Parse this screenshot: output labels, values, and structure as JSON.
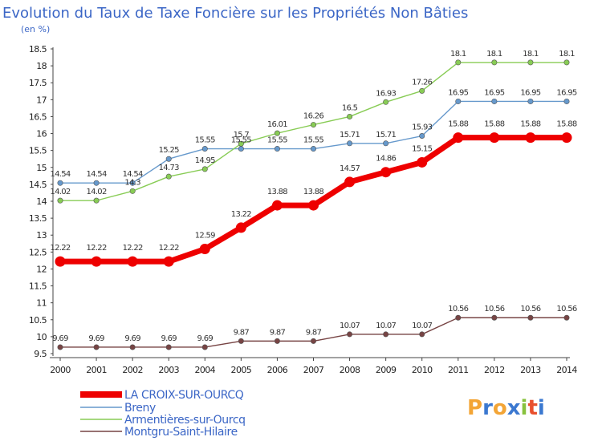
{
  "chart_data": {
    "type": "line",
    "title": "Evolution du Taux de Taxe Foncière sur les Propriétés Non Bâties",
    "subtitle": "(en %)",
    "x": [
      "2000",
      "2001",
      "2002",
      "2003",
      "2004",
      "2005",
      "2006",
      "2007",
      "2008",
      "2009",
      "2010",
      "2011",
      "2012",
      "2013",
      "2014"
    ],
    "ylim": [
      9.5,
      18.5
    ],
    "yticks": [
      "9.5",
      "10",
      "10.5",
      "11",
      "11.5",
      "12",
      "12.5",
      "13",
      "13.5",
      "14",
      "14.5",
      "15",
      "15.5",
      "16",
      "16.5",
      "17",
      "17.5",
      "18",
      "18.5"
    ],
    "grid": false,
    "legend_position": "bottom-left",
    "series": [
      {
        "name": "LA CROIX-SUR-OURCQ",
        "color": "#ee0000",
        "emphasis": true,
        "values": [
          12.22,
          12.22,
          12.22,
          12.22,
          12.59,
          13.22,
          13.88,
          13.88,
          14.57,
          14.86,
          15.15,
          15.88,
          15.88,
          15.88,
          15.88
        ],
        "labels": [
          "12.22",
          "12.22",
          "12.22",
          "12.22",
          "12.59",
          "13.22",
          "13.88",
          "13.88",
          "14.57",
          "14.86",
          "15.15",
          "15.88",
          "15.88",
          "15.88",
          "15.88"
        ]
      },
      {
        "name": "Breny",
        "color": "#6699cc",
        "values": [
          14.54,
          14.54,
          14.54,
          15.25,
          15.55,
          15.55,
          15.55,
          15.55,
          15.71,
          15.71,
          15.93,
          16.95,
          16.95,
          16.95,
          16.95
        ],
        "labels": [
          "14.54",
          "14.54",
          "14.54",
          "15.25",
          "15.55",
          "15.55",
          "15.55",
          "15.55",
          "15.71",
          "15.71",
          "15.93",
          "16.95",
          "16.95",
          "16.95",
          "16.95"
        ]
      },
      {
        "name": "Armentières-sur-Ourcq",
        "color": "#88cc55",
        "values": [
          14.02,
          14.02,
          14.3,
          14.73,
          14.95,
          15.7,
          16.01,
          16.26,
          16.5,
          16.93,
          17.26,
          18.1,
          18.1,
          18.1,
          18.1
        ],
        "labels": [
          "14.02",
          "14.02",
          "14.3",
          "14.73",
          "14.95",
          "15.7",
          "16.01",
          "16.26",
          "16.5",
          "16.93",
          "17.26",
          "18.1",
          "18.1",
          "18.1",
          "18.1"
        ]
      },
      {
        "name": "Montgru-Saint-Hilaire",
        "color": "#774444",
        "values": [
          9.69,
          9.69,
          9.69,
          9.69,
          9.69,
          9.87,
          9.87,
          9.87,
          10.07,
          10.07,
          10.07,
          10.56,
          10.56,
          10.56,
          10.56
        ],
        "labels": [
          "9.69",
          "9.69",
          "9.69",
          "9.69",
          "9.69",
          "9.87",
          "9.87",
          "9.87",
          "10.07",
          "10.07",
          "10.07",
          "10.56",
          "10.56",
          "10.56",
          "10.56"
        ]
      }
    ]
  },
  "logo": {
    "letters": [
      "P",
      "r",
      "o",
      "x",
      "i",
      "t",
      "i"
    ],
    "colors": [
      "#f3a536",
      "#3b78d0",
      "#f3a536",
      "#3b78d0",
      "#88c23e",
      "#e8502e",
      "#3b78d0"
    ]
  }
}
